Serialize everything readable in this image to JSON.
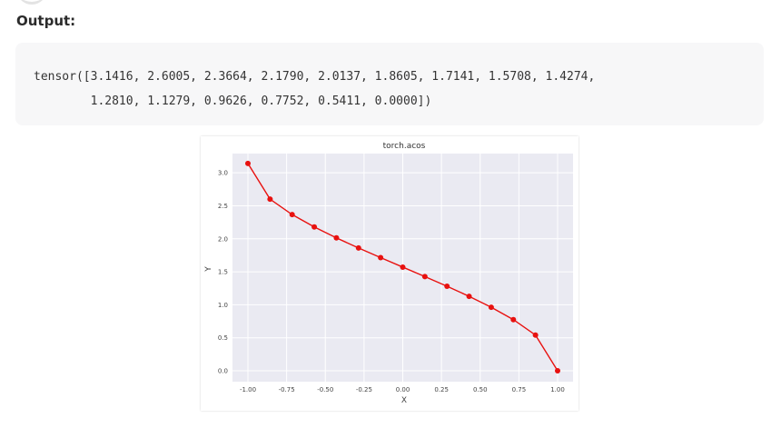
{
  "page": {
    "heading": "Output:",
    "code_lines": [
      "tensor([3.1416, 2.6005, 2.3664, 2.1790, 2.0137, 1.8605, 1.7141, 1.5708, 1.4274,",
      "        1.2810, 1.1279, 0.9626, 0.7752, 0.5411, 0.0000])"
    ]
  },
  "colors": {
    "line": "#e8110f",
    "plot_bg": "#eaeaf2",
    "grid": "#ffffff"
  },
  "chart_data": {
    "type": "line",
    "title": "torch.acos",
    "xlabel": "X",
    "ylabel": "Y",
    "xlim": [
      -1.0,
      1.0
    ],
    "ylim": [
      0.0,
      3.14
    ],
    "grid": true,
    "x": [
      -1.0,
      -0.8571,
      -0.7143,
      -0.5714,
      -0.4286,
      -0.2857,
      -0.1429,
      0.0,
      0.1429,
      0.2857,
      0.4286,
      0.5714,
      0.7143,
      0.8571,
      1.0
    ],
    "series": [
      {
        "values": [
          3.1416,
          2.6005,
          2.3664,
          2.179,
          2.0137,
          1.8605,
          1.7141,
          1.5708,
          1.4274,
          1.281,
          1.1279,
          0.9626,
          0.7752,
          0.5411,
          0.0
        ]
      }
    ],
    "xticks": [
      -1.0,
      -0.75,
      -0.5,
      -0.25,
      0.0,
      0.25,
      0.5,
      0.75,
      1.0
    ],
    "xtick_labels": [
      "-1.00",
      "-0.75",
      "-0.50",
      "-0.25",
      "0.00",
      "0.25",
      "0.50",
      "0.75",
      "1.00"
    ],
    "yticks": [
      0.0,
      0.5,
      1.0,
      1.5,
      2.0,
      2.5,
      3.0
    ],
    "ytick_labels": [
      "0.0",
      "0.5",
      "1.0",
      "1.5",
      "2.0",
      "2.5",
      "3.0"
    ]
  }
}
